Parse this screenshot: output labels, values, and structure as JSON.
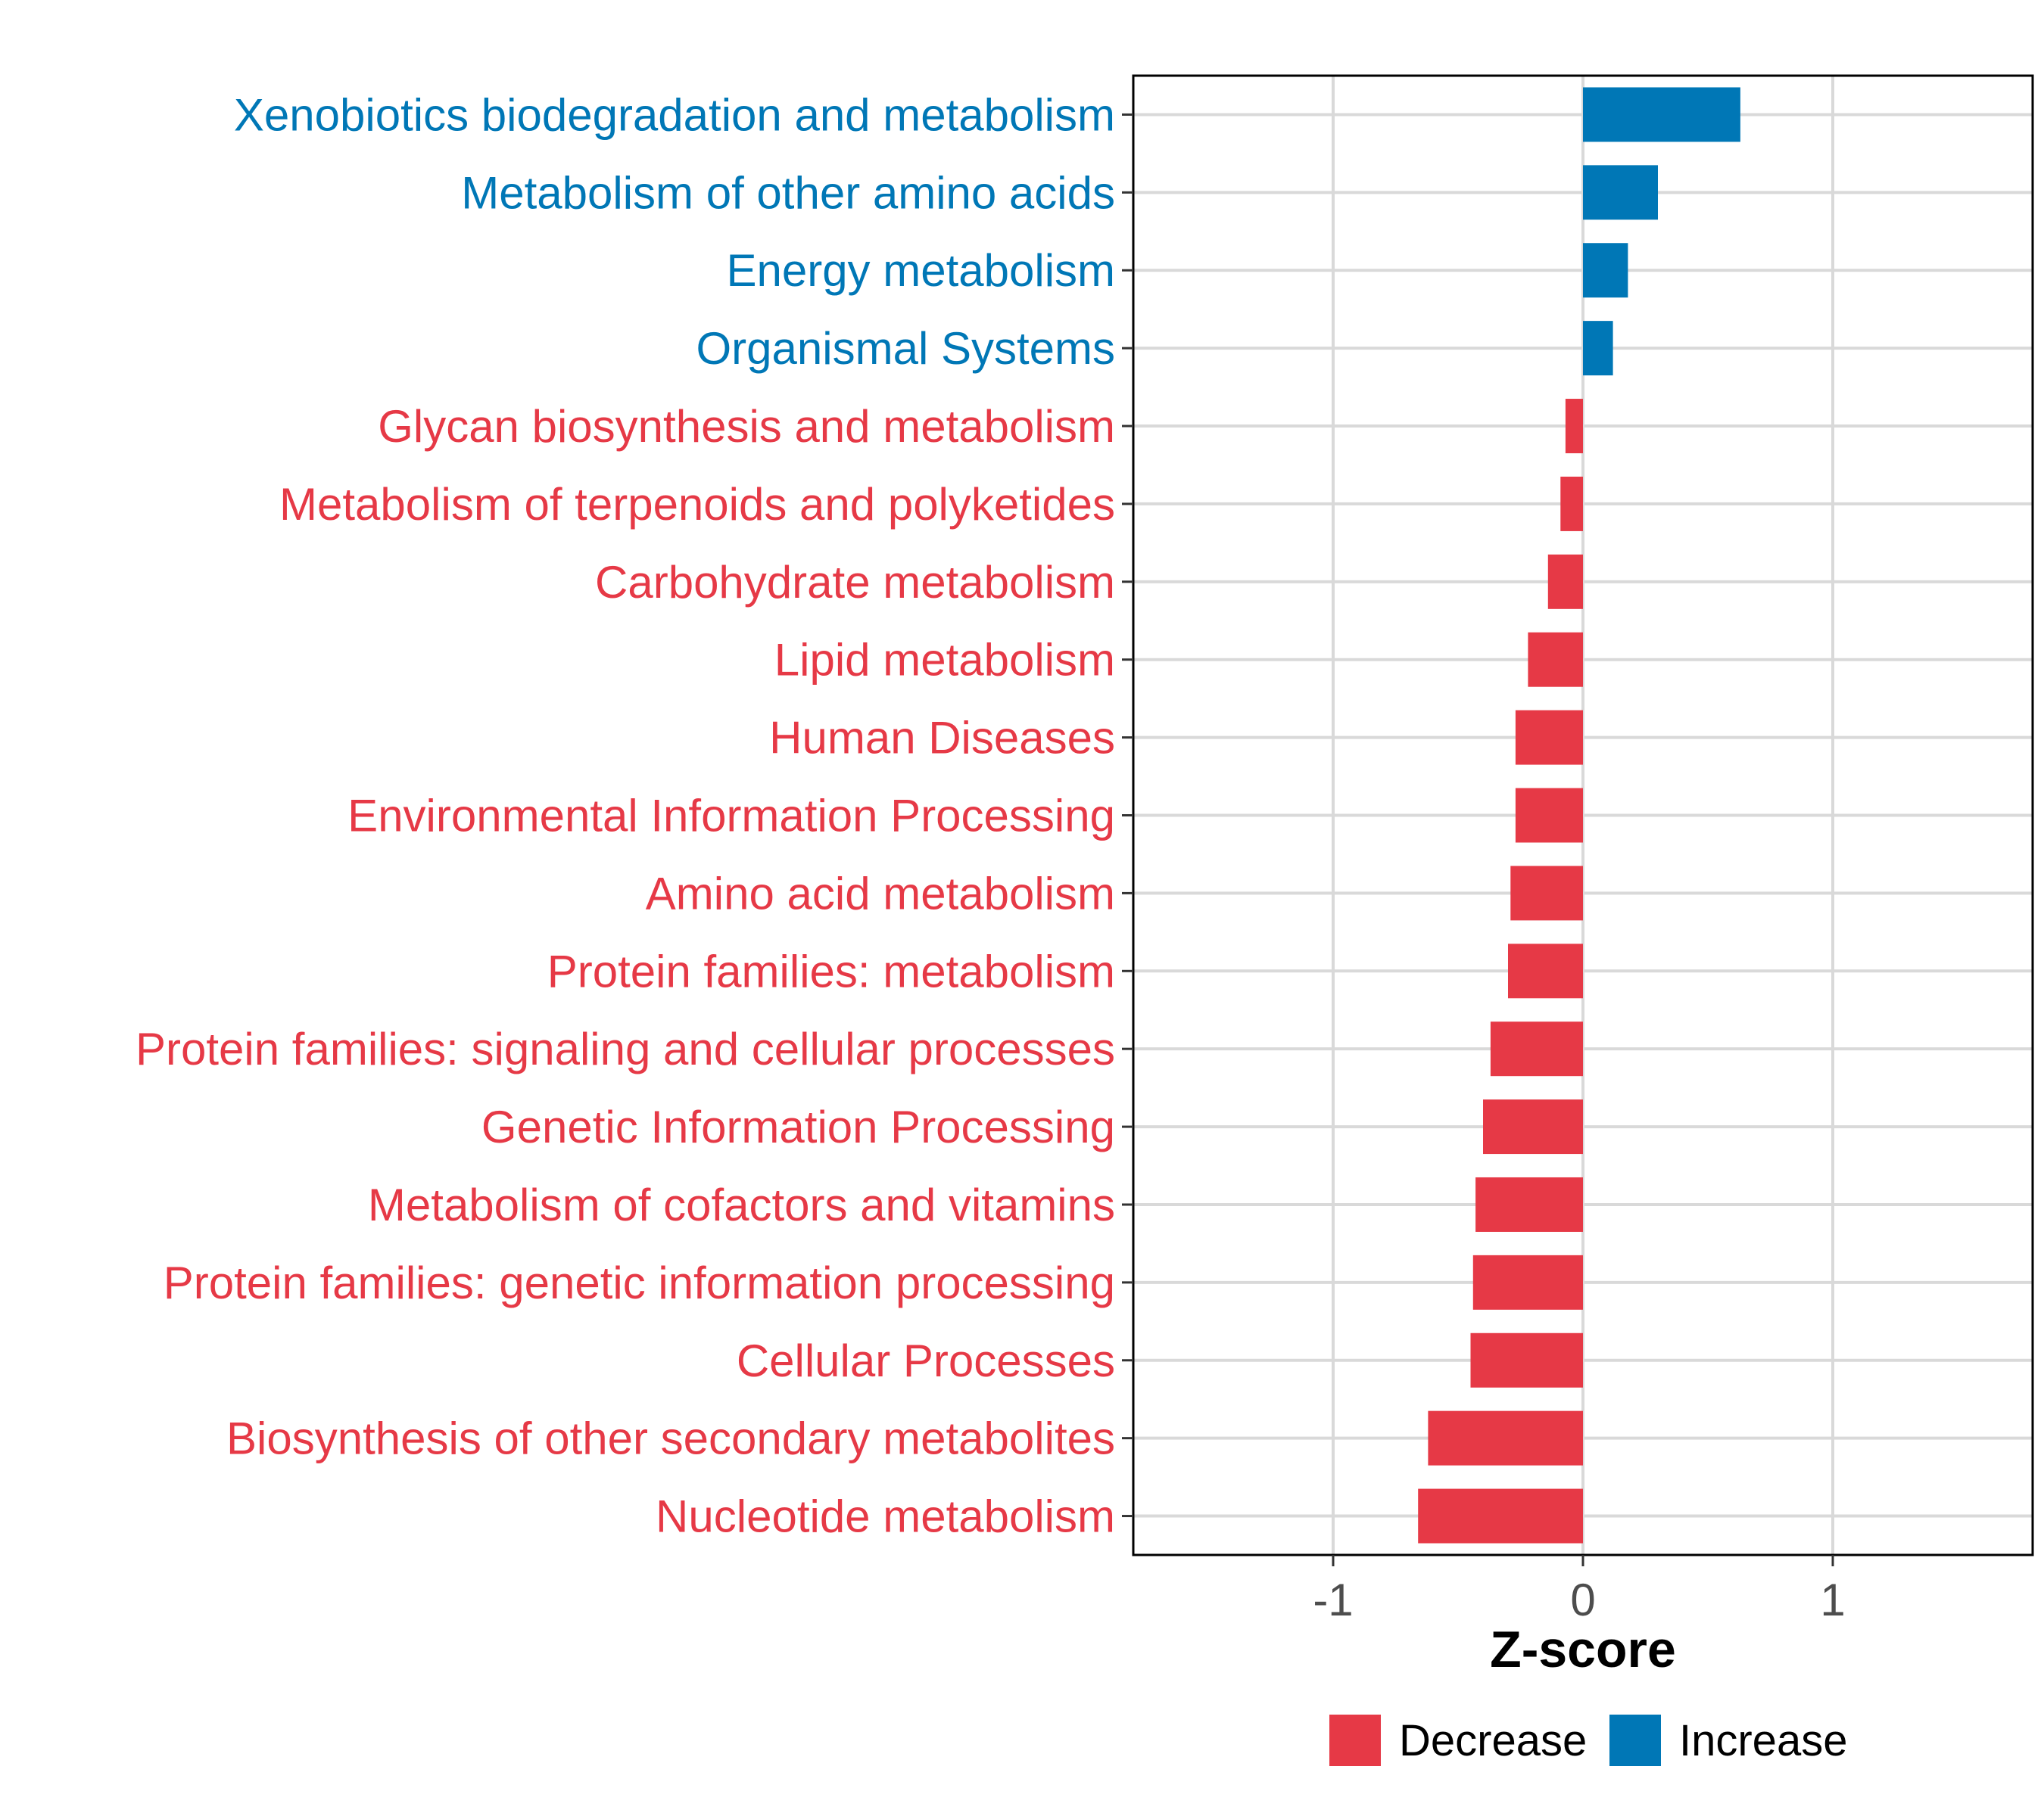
{
  "chart_data": {
    "type": "bar",
    "orientation": "horizontal",
    "title": "",
    "xlabel": "Z-score",
    "ylabel": "",
    "xlim": [
      -1.8,
      1.8
    ],
    "xticks": [
      -1,
      0,
      1
    ],
    "xtick_labels": [
      "-1",
      "0",
      "1"
    ],
    "grid": true,
    "legend": {
      "position": "bottom",
      "entries": [
        {
          "label": "Decrease",
          "color": "#E63946"
        },
        {
          "label": "Increase",
          "color": "#0077B6"
        }
      ]
    },
    "categories": [
      "Xenobiotics biodegradation and metabolism",
      "Metabolism of other amino acids",
      "Energy metabolism",
      "Organismal Systems",
      "Glycan biosynthesis and metabolism",
      "Metabolism of terpenoids and polyketides",
      "Carbohydrate metabolism",
      "Lipid metabolism",
      "Human Diseases",
      "Environmental Information Processing",
      "Amino acid metabolism",
      "Protein families: metabolism",
      "Protein families: signaling and cellular processes",
      "Genetic Information Processing",
      "Metabolism of cofactors and vitamins",
      "Protein families: genetic information processing",
      "Cellular Processes",
      "Biosynthesis of other secondary metabolites",
      "Nucleotide metabolism"
    ],
    "values": [
      0.63,
      0.3,
      0.18,
      0.12,
      -0.07,
      -0.09,
      -0.14,
      -0.22,
      -0.27,
      -0.27,
      -0.29,
      -0.3,
      -0.37,
      -0.4,
      -0.43,
      -0.44,
      -0.45,
      -0.62,
      -0.66
    ],
    "groups": [
      "Increase",
      "Increase",
      "Increase",
      "Increase",
      "Decrease",
      "Decrease",
      "Decrease",
      "Decrease",
      "Decrease",
      "Decrease",
      "Decrease",
      "Decrease",
      "Decrease",
      "Decrease",
      "Decrease",
      "Decrease",
      "Decrease",
      "Decrease",
      "Decrease"
    ]
  }
}
